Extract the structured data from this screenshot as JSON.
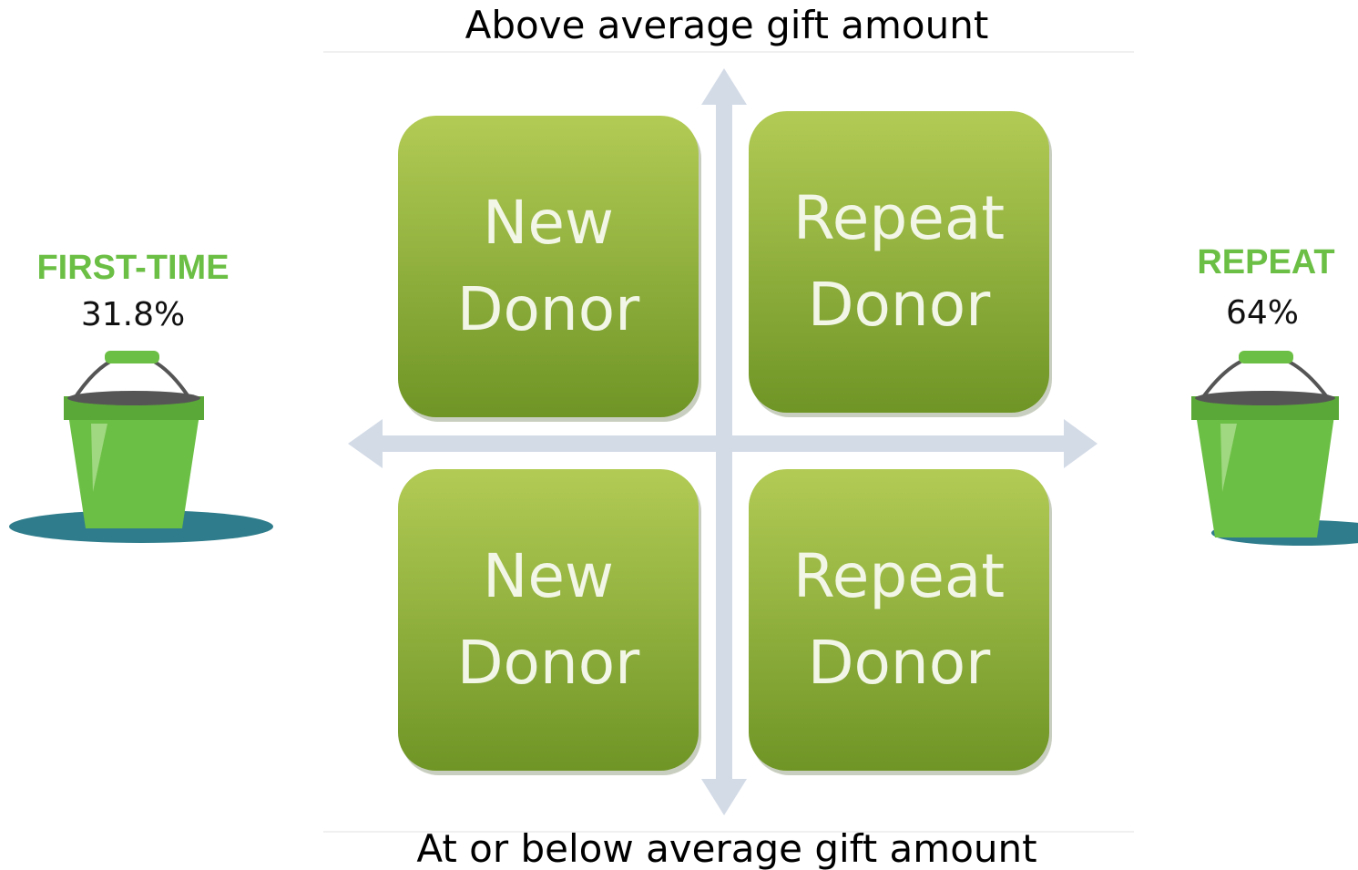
{
  "top_label": "Above average gift amount",
  "bottom_label": "At or below average gift amount",
  "quadrants": [
    {
      "lines": [
        "New",
        "Donor"
      ]
    },
    {
      "lines": [
        "Repeat",
        "Donor"
      ]
    },
    {
      "lines": [
        "New",
        "Donor"
      ]
    },
    {
      "lines": [
        "Repeat",
        "Donor"
      ]
    }
  ],
  "left": {
    "title": "FIRST-TIME",
    "value": "31.8%"
  },
  "right": {
    "title": "REPEAT",
    "value": "64%"
  }
}
